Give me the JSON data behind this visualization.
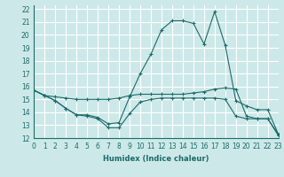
{
  "bg_color": "#cde8e8",
  "grid_color": "#ffffff",
  "line_color": "#1a6b6b",
  "xlabel": "Humidex (Indice chaleur)",
  "xlim": [
    0,
    23
  ],
  "ylim": [
    12,
    22.3
  ],
  "xticks": [
    0,
    1,
    2,
    3,
    4,
    5,
    6,
    7,
    8,
    9,
    10,
    11,
    12,
    13,
    14,
    15,
    16,
    17,
    18,
    19,
    20,
    21,
    22,
    23
  ],
  "yticks": [
    12,
    13,
    14,
    15,
    16,
    17,
    18,
    19,
    20,
    21,
    22
  ],
  "series": [
    {
      "x": [
        0,
        1,
        2,
        3,
        4,
        5,
        6,
        7,
        8,
        9,
        10,
        11,
        12,
        13,
        14,
        15,
        16,
        17,
        18,
        19,
        20,
        21,
        22,
        23
      ],
      "y": [
        15.7,
        15.3,
        15.2,
        15.1,
        15.0,
        15.0,
        15.0,
        15.0,
        15.1,
        15.3,
        15.4,
        15.4,
        15.4,
        15.4,
        15.4,
        15.5,
        15.6,
        15.8,
        15.9,
        15.8,
        13.7,
        13.5,
        13.5,
        12.2
      ]
    },
    {
      "x": [
        0,
        1,
        2,
        3,
        4,
        5,
        6,
        7,
        8,
        9,
        10,
        11,
        12,
        13,
        14,
        15,
        16,
        17,
        18,
        19,
        20,
        21,
        22,
        23
      ],
      "y": [
        15.7,
        15.3,
        14.9,
        14.3,
        13.8,
        13.8,
        13.6,
        13.1,
        13.2,
        15.2,
        17.0,
        18.5,
        20.4,
        21.1,
        21.1,
        20.9,
        19.3,
        21.8,
        19.2,
        14.9,
        14.5,
        14.2,
        14.2,
        12.3
      ]
    },
    {
      "x": [
        0,
        1,
        2,
        3,
        4,
        5,
        6,
        7,
        8,
        9,
        10,
        11,
        12,
        13,
        14,
        15,
        16,
        17,
        18,
        19,
        20,
        21,
        22,
        23
      ],
      "y": [
        15.7,
        15.3,
        14.9,
        14.3,
        13.8,
        13.7,
        13.5,
        12.8,
        12.8,
        13.9,
        14.8,
        15.0,
        15.1,
        15.1,
        15.1,
        15.1,
        15.1,
        15.1,
        15.0,
        13.7,
        13.5,
        13.5,
        13.5,
        12.3
      ]
    }
  ]
}
